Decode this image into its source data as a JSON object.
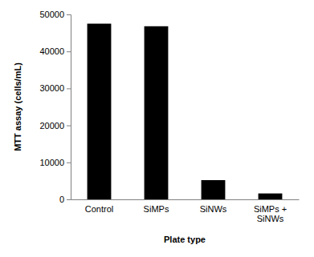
{
  "chart_data": {
    "type": "bar",
    "x_label": "Plate type",
    "y_label": "MTT assay (cells/mL)",
    "categories": [
      "Control",
      "SiMPs",
      "SiNWs",
      "SiMPs + SiNWs"
    ],
    "values": [
      47500,
      46800,
      5200,
      1600
    ],
    "color": "#000000",
    "ylim": [
      0,
      50000
    ],
    "yticks": [
      0,
      10000,
      20000,
      30000,
      40000,
      50000
    ],
    "grid": false
  }
}
